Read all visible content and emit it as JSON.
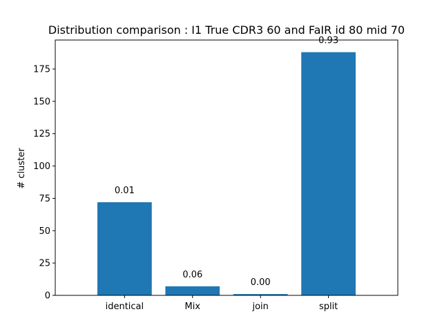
{
  "chart_data": {
    "type": "bar",
    "title": "Distribution comparison : I1 True CDR3 60 and FaIR id 80 mid 70",
    "xlabel": "",
    "ylabel": "# cluster",
    "categories": [
      "identical",
      "Mix",
      "join",
      "split"
    ],
    "values": [
      72,
      7,
      1,
      188
    ],
    "bar_labels": [
      "0.01",
      "0.06",
      "0.00",
      "0.93"
    ],
    "yticks": [
      0,
      25,
      50,
      75,
      100,
      125,
      150,
      175
    ],
    "ylim": [
      0,
      197.4
    ],
    "grid": false,
    "bar_color": "#1f77b4"
  }
}
